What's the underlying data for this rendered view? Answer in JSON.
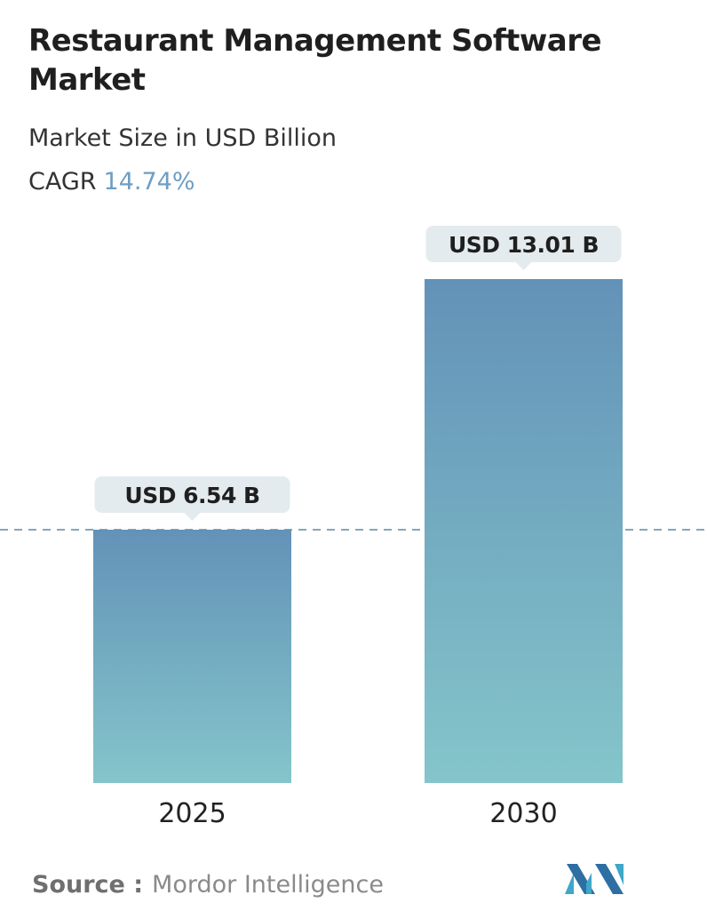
{
  "chart_data": {
    "type": "bar",
    "title": "Restaurant Management Software Market",
    "subtitle": "Market Size in USD Billion",
    "cagr_label": "CAGR",
    "cagr": "14.74%",
    "categories": [
      "2025",
      "2030"
    ],
    "values": [
      6.54,
      13.01
    ],
    "value_labels": [
      "USD 6.54 B",
      "USD 13.01 B"
    ],
    "color_top": "#6392b8",
    "color_bottom": "#84c5ca",
    "source_label": "Source :",
    "source": "Mordor Intelligence"
  }
}
